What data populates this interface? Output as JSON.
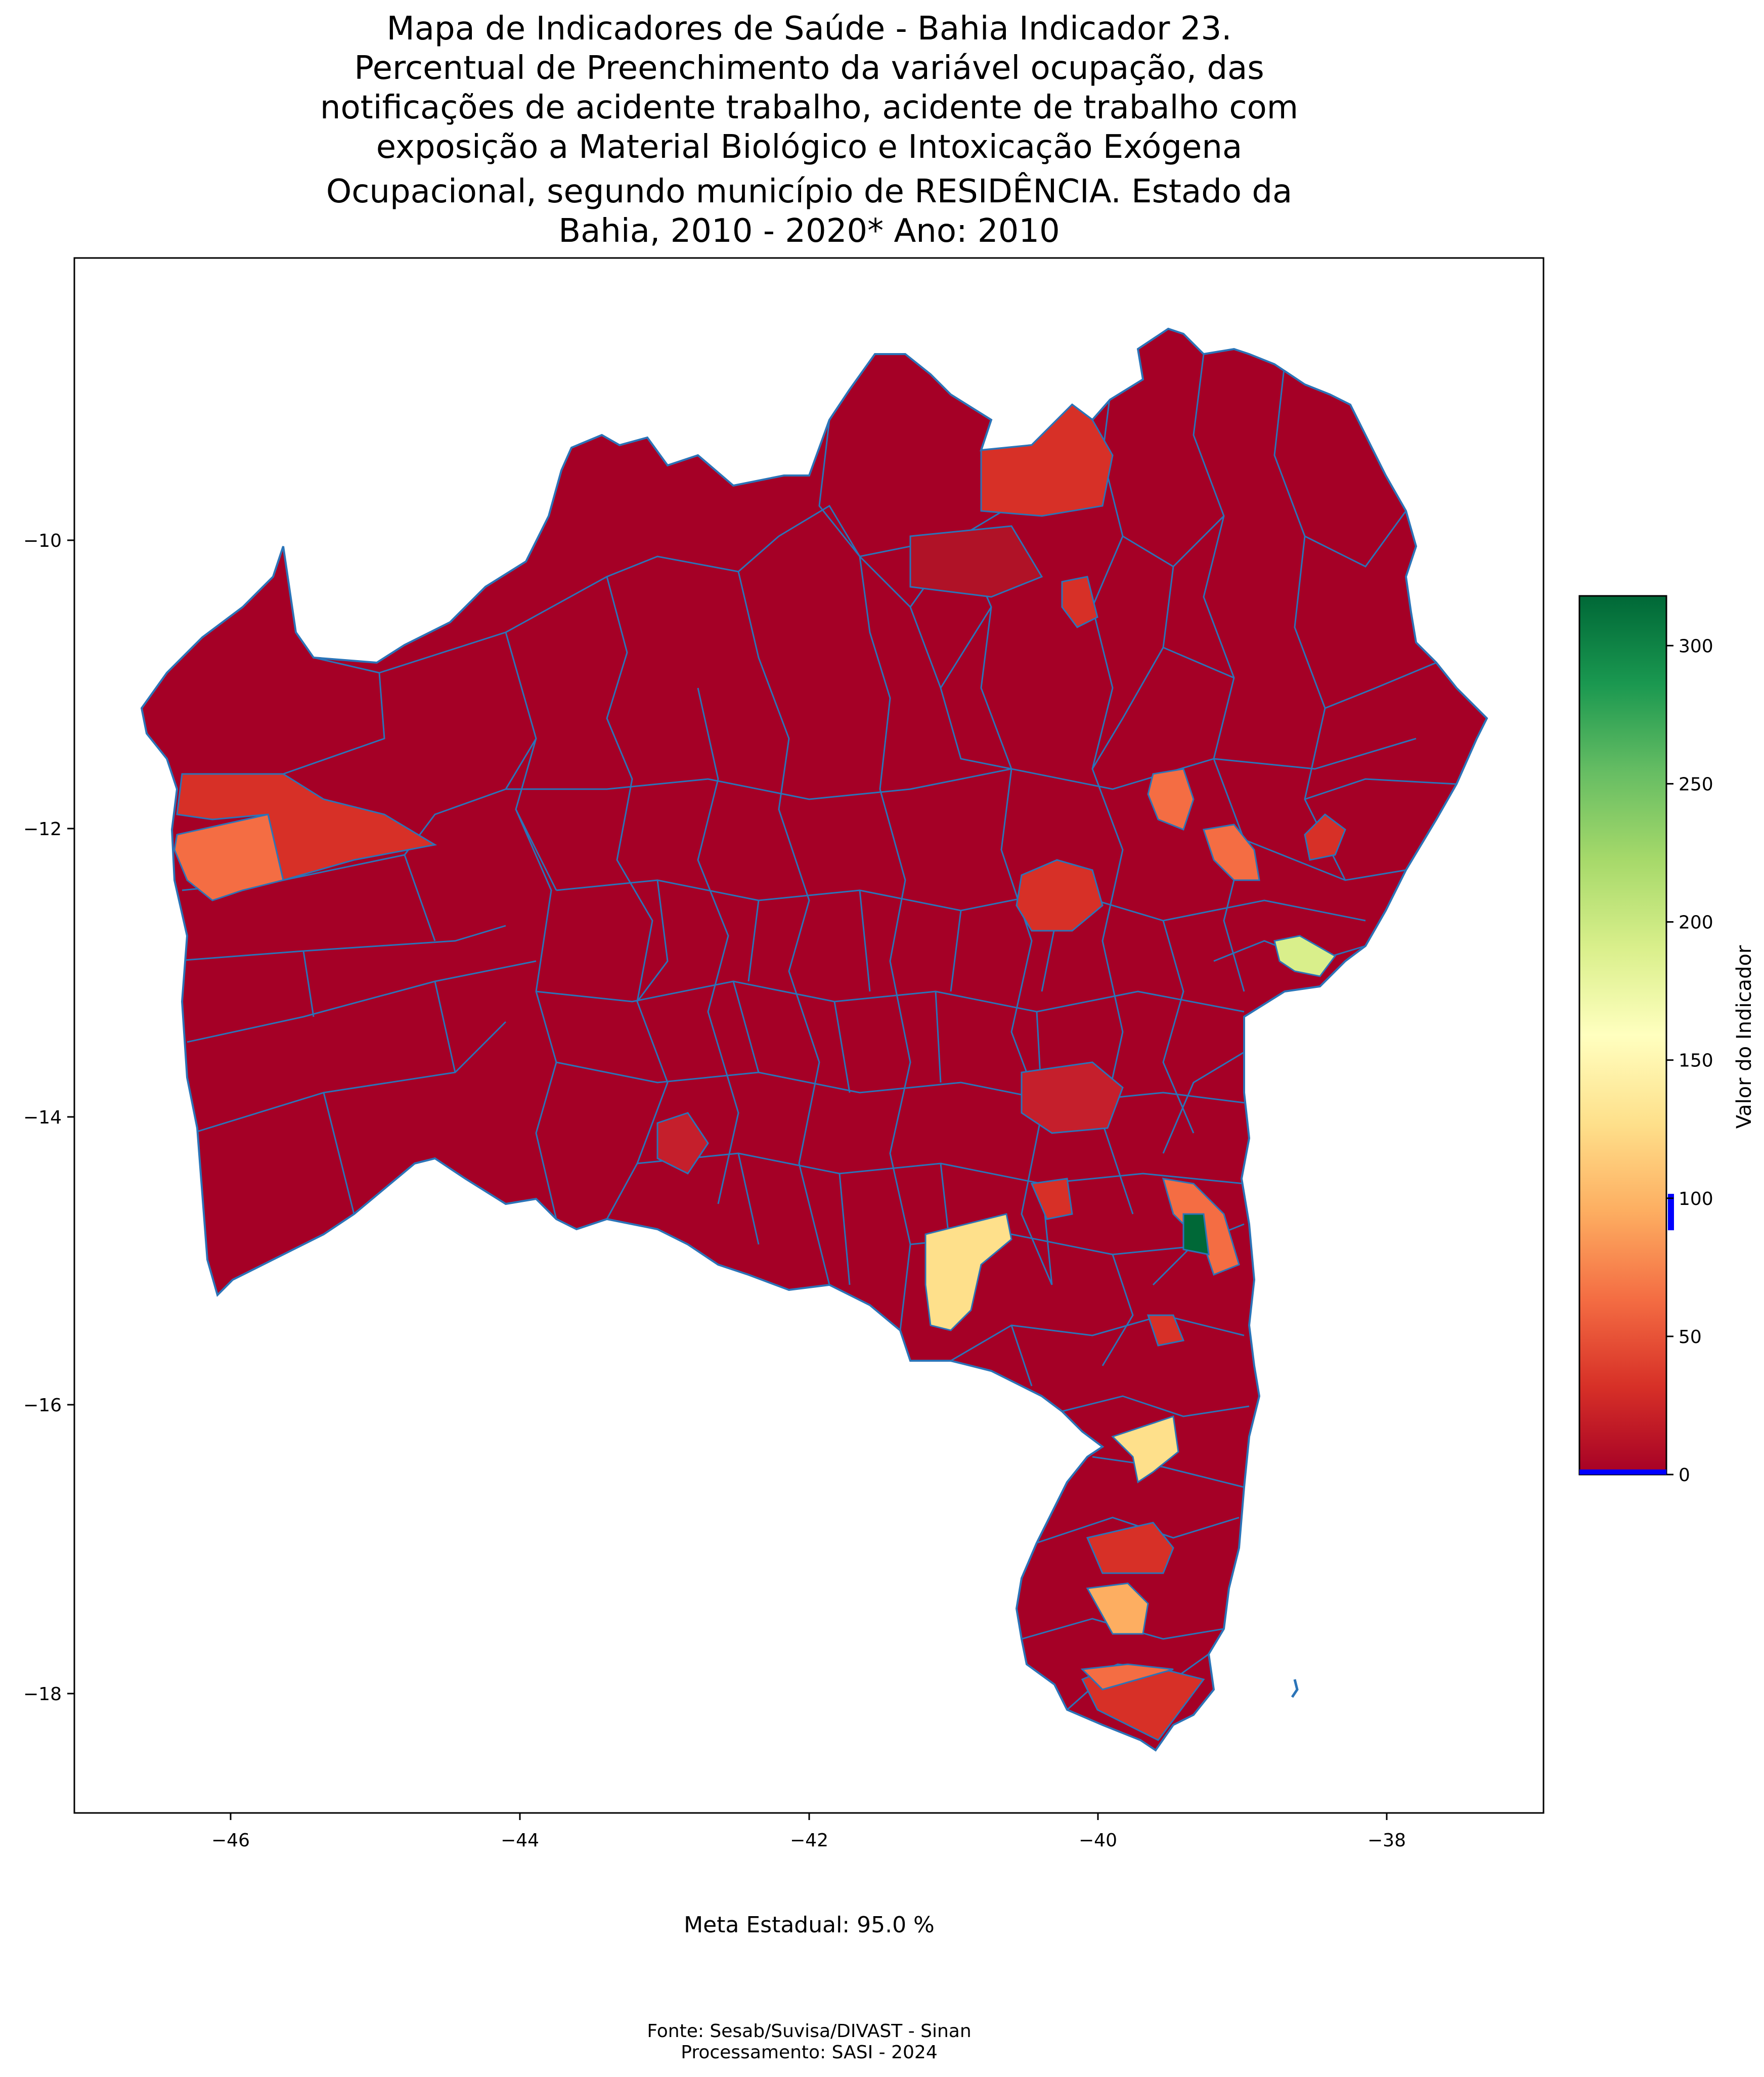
{
  "title_lines": [
    "Mapa de Indicadores de Saúde - Bahia   Indicador 23.",
    "Percentual de Preenchimento da variável ocupação, das",
    "notificações de acidente trabalho, acidente de trabalho com",
    "exposição a Material Biológico e Intoxicação Exógena",
    "Ocupacional, segundo município de RESIDÊNCIA. Estado da",
    "Bahia, 2010 - 2020*   Ano: 2010"
  ],
  "map": {
    "x_ticks": [
      "−46",
      "−44",
      "−42",
      "−40",
      "−38"
    ],
    "y_ticks": [
      "−10",
      "−12",
      "−14",
      "−16",
      "−18"
    ],
    "base_fill": "#a50026",
    "border_color": "#2b74b8",
    "highlight_regions": [
      {
        "value": 45,
        "color": "#d73027"
      },
      {
        "value": 80,
        "color": "#f46d43"
      },
      {
        "value": 130,
        "color": "#fee08b"
      },
      {
        "value": 110,
        "color": "#fdae61"
      },
      {
        "value": 190,
        "color": "#d9ef8b"
      },
      {
        "value": 310,
        "color": "#006837"
      }
    ]
  },
  "colorbar": {
    "label": "Valor do Indicador",
    "ticks": [
      "0",
      "50",
      "100",
      "150",
      "200",
      "250",
      "300"
    ],
    "min": 0,
    "max": 318,
    "colormap": "RdYlGn",
    "marker_value": 95,
    "marker_color": "#0000ff"
  },
  "footer": {
    "meta": "Meta Estadual: 95.0 %",
    "source": "Fonte: Sesab/Suvisa/DIVAST - Sinan",
    "processing": "Processamento: SASI - 2024"
  }
}
